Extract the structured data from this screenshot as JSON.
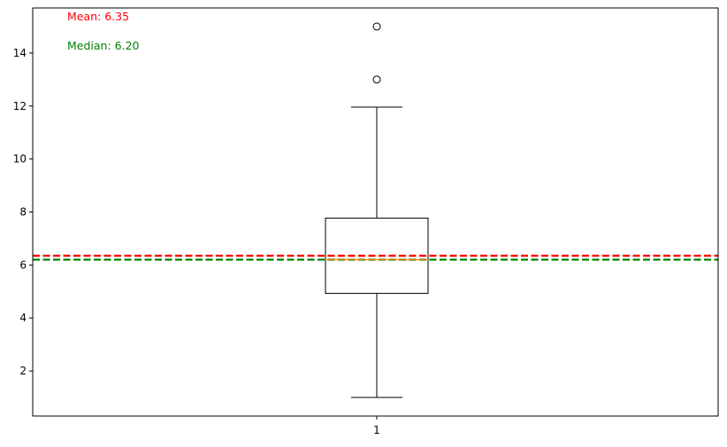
{
  "chart_data": {
    "type": "box",
    "title": "",
    "xlabel": "",
    "ylabel": "",
    "ylim": [
      0.3,
      15.7
    ],
    "yticks": [
      2,
      4,
      6,
      8,
      10,
      12,
      14
    ],
    "xticks": [
      1
    ],
    "categories": [
      "1"
    ],
    "box": {
      "whisker_low": 1.0,
      "q1": 4.93,
      "median": 6.2,
      "q3": 7.77,
      "whisker_high": 11.96,
      "outliers": [
        13.0,
        15.0
      ]
    },
    "reference_lines": [
      {
        "value": 6.35,
        "color": "#ff0000",
        "style": "dashed"
      },
      {
        "value": 6.2,
        "color": "#008000",
        "style": "dashed"
      }
    ],
    "annotations": [
      {
        "text": "Mean: 6.35",
        "color": "#ff0000"
      },
      {
        "text": "Median: 6.20",
        "color": "#008000"
      }
    ],
    "colors": {
      "box": "#000000",
      "median_line": "#ff7f0e",
      "mean_line": "#ff0000",
      "median_ref_line": "#008000"
    }
  }
}
